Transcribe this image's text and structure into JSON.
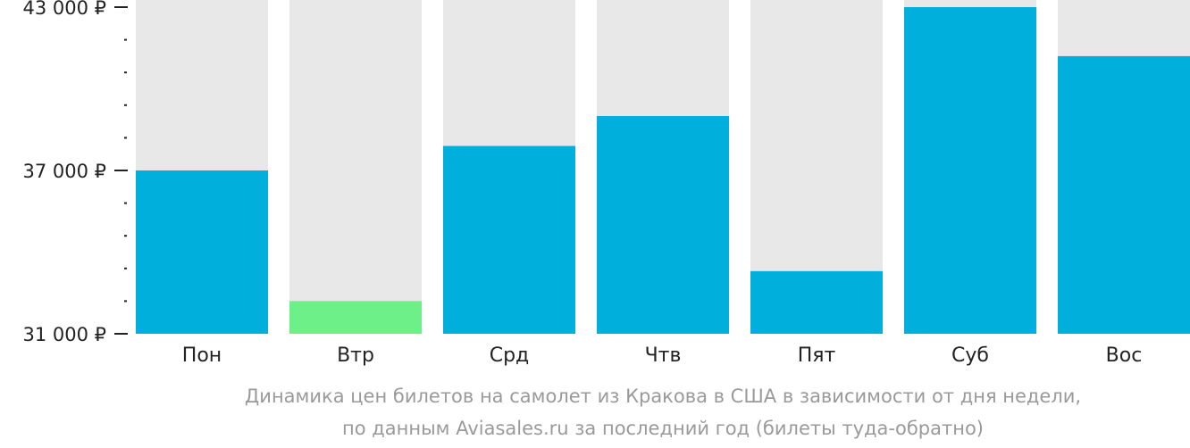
{
  "colors": {
    "bar": "#00afdb",
    "bar_min": "#6cf087",
    "bar_background": "#e8e8e8",
    "axis": "#222222",
    "caption": "#9a9a9a"
  },
  "chart_data": {
    "type": "bar",
    "categories": [
      "Пон",
      "Втр",
      "Срд",
      "Чтв",
      "Пят",
      "Суб",
      "Вос"
    ],
    "values": [
      37000,
      32200,
      37900,
      39000,
      33300,
      43000,
      41200
    ],
    "min_highlight_index": 1,
    "ylim": [
      31000,
      43000
    ],
    "y_ticks": [
      {
        "value": 43000,
        "label": "43 000 ₽"
      },
      {
        "value": 37000,
        "label": "37 000 ₽"
      },
      {
        "value": 31000,
        "label": "31 000 ₽"
      }
    ],
    "y_minor_tick_step": 1200,
    "grid": false,
    "legend": "none"
  },
  "caption": {
    "line1": "Динамика цен билетов на самолет из Кракова в США в зависимости от дня недели,",
    "line2": "по данным Aviasales.ru за последний год (билеты туда-обратно)"
  }
}
